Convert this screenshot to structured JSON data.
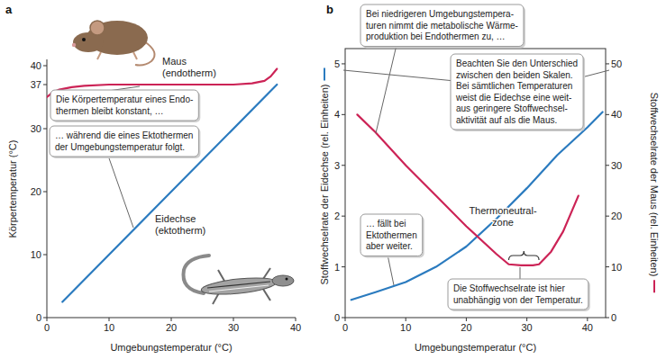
{
  "chart_data": [
    {
      "type": "line",
      "title": "a",
      "x_label": "Umgebungstemperatur (°C)",
      "y_label": "Körpertemperatur (°C)",
      "xlim": [
        0,
        40
      ],
      "xticks": [
        0,
        10,
        20,
        30,
        40
      ],
      "ylim": [
        0,
        41
      ],
      "yticks": [
        0,
        10,
        20,
        30,
        37,
        40
      ],
      "grid": false,
      "series": [
        {
          "name": "Maus (endotherm)",
          "color": "#cc2356",
          "x": [
            0,
            1,
            2,
            4,
            6,
            10,
            15,
            20,
            25,
            30,
            33,
            35,
            36,
            37
          ],
          "values": [
            35,
            35.8,
            36.2,
            36.6,
            36.8,
            37,
            37,
            37,
            37,
            37,
            37.2,
            37.6,
            38.3,
            39.5
          ]
        },
        {
          "name": "Eidechse (ektotherm)",
          "color": "#2b7bbf",
          "x": [
            2.5,
            37
          ],
          "values": [
            2.5,
            37
          ]
        }
      ],
      "annotations": [
        {
          "lines": [
            "Die Körpertemperatur eines Endo-",
            "thermen bleibt konstant, …"
          ]
        },
        {
          "lines": [
            "… während die eines Ektothermen",
            "der Umgebungstemperatur folgt."
          ]
        }
      ]
    },
    {
      "type": "line",
      "title": "b",
      "x_label": "Umgebungstemperatur (°C)",
      "y_label": "Stoffwechselrate der Eidechse (rel. Einheiten)",
      "y2_label": "Stoffwechselrate der Maus (rel. Einheiten)",
      "xlim": [
        0,
        43
      ],
      "xticks": [
        0,
        10,
        20,
        30,
        40
      ],
      "ylim": [
        0,
        5.3
      ],
      "yticks": [
        0,
        1,
        2,
        3,
        4,
        5
      ],
      "y2lim": [
        0,
        53
      ],
      "y2ticks": [
        0,
        10,
        20,
        30,
        40,
        50
      ],
      "grid": false,
      "series": [
        {
          "color": "#2b7bbf",
          "x": [
            1,
            5,
            10,
            15,
            20,
            25,
            30,
            35,
            40,
            42.5
          ],
          "values": [
            0.35,
            0.5,
            0.7,
            1.0,
            1.4,
            1.95,
            2.55,
            3.2,
            3.75,
            4.05
          ]
        },
        {
          "color": "#cc2356",
          "axis": "y2",
          "x": [
            2,
            5,
            10,
            15,
            20,
            25,
            27,
            29,
            31,
            32,
            34,
            36,
            38.5
          ],
          "values": [
            40,
            36.5,
            30,
            24,
            18,
            12.5,
            10.5,
            10.3,
            10.3,
            10.5,
            13,
            17,
            24
          ]
        }
      ],
      "thermoneutral_zone": [
        27,
        32
      ],
      "annotations": [
        {
          "lines": [
            "Bei niedrigeren Umgebungstempera-",
            "turen nimmt die metabolische Wärme-",
            "produktion bei Endothermen zu, …"
          ]
        },
        {
          "lines": [
            "Beachten Sie den Unterschied",
            "zwischen den beiden Skalen.",
            "Bei sämtlichen Temperaturen",
            "weist die Eidechse eine weit-",
            "aus geringere Stoffwechsel-",
            "aktivität auf als die Maus."
          ]
        },
        {
          "lines": [
            "Thermoneutral-",
            "zone"
          ]
        },
        {
          "lines": [
            "… fällt bei",
            "Ektothermen",
            "aber weiter."
          ]
        },
        {
          "lines": [
            "Die Stoffwechselrate ist hier",
            "unabhängig von der Temperatur."
          ]
        }
      ]
    }
  ]
}
